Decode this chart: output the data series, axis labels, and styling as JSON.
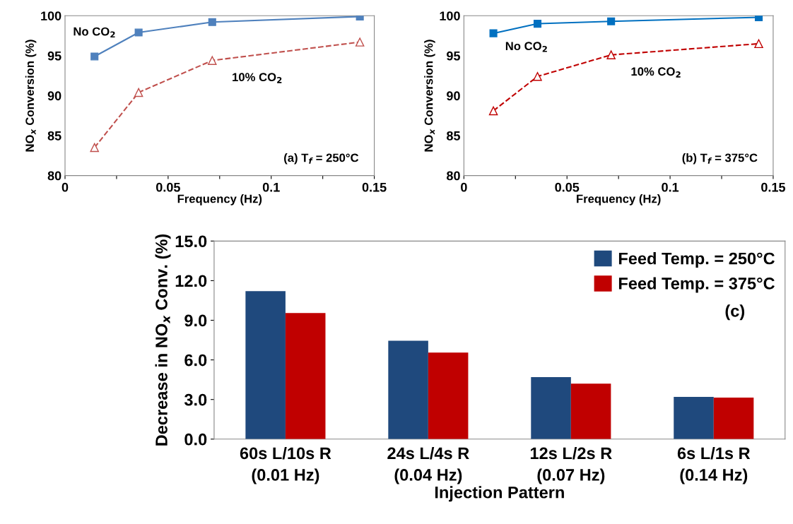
{
  "chart_data": [
    {
      "type": "line",
      "xlabel": "Frequency (Hz)",
      "ylabel": "NO$_{x}$ Conversion (%)",
      "annotations": [
        "(a) T$_{f}$ = 250°C"
      ],
      "x": [
        0.0143,
        0.0357,
        0.0714,
        0.143
      ],
      "series": [
        {
          "name": "No CO$_{2}$",
          "color": "#4f81bd",
          "marker": "square",
          "line_style": "solid",
          "values": [
            94.9,
            97.9,
            99.2,
            99.9
          ]
        },
        {
          "name": "10% CO$_{2}$",
          "color": "#c0504d",
          "marker": "triangle",
          "line_style": "dashed",
          "values": [
            83.5,
            90.4,
            94.4,
            96.7
          ]
        }
      ],
      "xlim": [
        0,
        0.15
      ],
      "xticks": [
        0,
        {
          "value": 0.025,
          "label": null
        },
        0.05,
        {
          "value": 0.075,
          "label": null
        },
        0.1,
        {
          "value": 0.125,
          "label": null
        },
        0.15
      ],
      "ylim": [
        80,
        100
      ],
      "yticks": [
        80,
        85,
        90,
        95,
        100
      ],
      "grid": false
    },
    {
      "type": "line",
      "xlabel": "Frequency (Hz)",
      "ylabel": "NO$_{x}$ Conversion (%)",
      "annotations": [
        "(b) T$_{f}$ = 375°C"
      ],
      "x": [
        0.0143,
        0.0357,
        0.0714,
        0.143
      ],
      "series": [
        {
          "name": "No CO$_{2}$",
          "color": "#0070c0",
          "marker": "square",
          "line_style": "solid",
          "values": [
            97.8,
            99.0,
            99.3,
            99.8
          ]
        },
        {
          "name": "10% CO$_{2}$",
          "color": "#c00000",
          "marker": "triangle",
          "line_style": "dashed",
          "values": [
            88.1,
            92.4,
            95.1,
            96.5
          ]
        }
      ],
      "xlim": [
        0,
        0.15
      ],
      "xticks": [
        0,
        {
          "value": 0.025,
          "label": null
        },
        0.05,
        {
          "value": 0.075,
          "label": null
        },
        0.1,
        {
          "value": 0.125,
          "label": null
        },
        0.15
      ],
      "ylim": [
        80,
        100
      ],
      "yticks": [
        80,
        85,
        90,
        95,
        100
      ],
      "grid": false
    },
    {
      "type": "bar",
      "xlabel": "Injection Pattern",
      "ylabel": "Decrease in NO$_{x}$ Conv. (%)",
      "annotations": [
        "(c)"
      ],
      "categories": [
        "60s L/10s R\n(0.01 Hz)",
        "24s L/4s R\n(0.04 Hz)",
        "12s L/2s R\n(0.07 Hz)",
        "6s L/1s R\n(0.14 Hz)"
      ],
      "series": [
        {
          "name": "Feed Temp. = 250°C",
          "color": "#1f497d",
          "values": [
            11.2,
            7.45,
            4.7,
            3.2
          ]
        },
        {
          "name": "Feed Temp. = 375°C",
          "color": "#c00000",
          "values": [
            9.55,
            6.55,
            4.2,
            3.15
          ]
        }
      ],
      "ylim": [
        0,
        15
      ],
      "yticks": [
        {
          "value": 0,
          "label": "0.0"
        },
        {
          "value": 3,
          "label": "3.0"
        },
        {
          "value": 6,
          "label": "6.0"
        },
        {
          "value": 9,
          "label": "9.0"
        },
        {
          "value": 12,
          "label": "12.0"
        },
        {
          "value": 15,
          "label": "15.0"
        }
      ],
      "grid": false,
      "legend": "top right"
    }
  ]
}
